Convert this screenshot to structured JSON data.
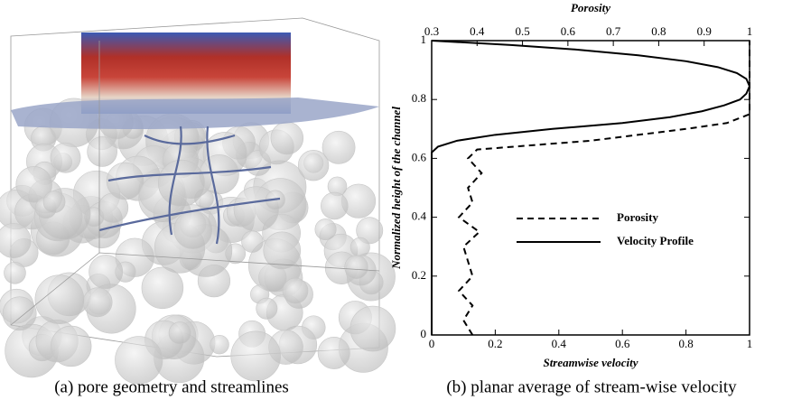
{
  "captions": [
    "(a) pore geometry and streamlines",
    "(b) planar average of stream-wise velocity"
  ],
  "chart_data": {
    "type": "line",
    "xlabel": "Streamwise velocity",
    "x2label": "Porosity",
    "ylabel": "Normalized height of the channel",
    "xlim": [
      0,
      1
    ],
    "xticks": [
      0,
      0.2,
      0.4,
      0.6,
      0.8,
      1
    ],
    "x2lim": [
      0.3,
      1
    ],
    "x2ticks": [
      0.3,
      0.4,
      0.5,
      0.6,
      0.7,
      0.8,
      0.9,
      1
    ],
    "ylim": [
      0,
      1
    ],
    "yticks": [
      0,
      0.2,
      0.4,
      0.6,
      0.8,
      1
    ],
    "legend": "center-right",
    "series": [
      {
        "name": "Porosity",
        "color": "#000000",
        "style": "dashed",
        "axis": "x2",
        "values": [
          0.39,
          0.37,
          0.39,
          0.36,
          0.39,
          0.38,
          0.37,
          0.405,
          0.36,
          0.39,
          0.38,
          0.41,
          0.38,
          0.4,
          0.65,
          0.86,
          0.95,
          1,
          1
        ],
        "y": [
          0,
          0.05,
          0.1,
          0.15,
          0.2,
          0.25,
          0.3,
          0.35,
          0.4,
          0.45,
          0.5,
          0.55,
          0.6,
          0.63,
          0.66,
          0.7,
          0.72,
          0.75,
          1
        ]
      },
      {
        "name": "Velocity Profile",
        "color": "#000000",
        "style": "solid",
        "axis": "x",
        "values": [
          0,
          0,
          0.02,
          0.08,
          0.2,
          0.38,
          0.6,
          0.75,
          0.85,
          0.92,
          0.97,
          0.99,
          1,
          0.99,
          0.96,
          0.9,
          0.8,
          0.65,
          0.45,
          0.25,
          0
        ],
        "y": [
          0,
          0.62,
          0.64,
          0.66,
          0.68,
          0.7,
          0.72,
          0.74,
          0.76,
          0.78,
          0.8,
          0.82,
          0.845,
          0.87,
          0.89,
          0.91,
          0.93,
          0.95,
          0.97,
          0.985,
          1
        ]
      }
    ]
  }
}
